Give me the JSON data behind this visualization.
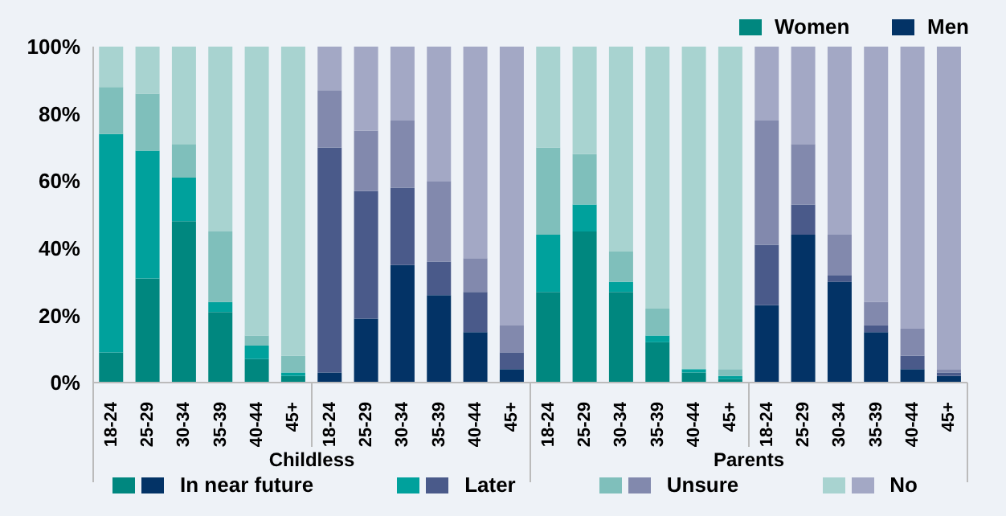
{
  "chart_data": {
    "type": "bar",
    "stacked": true,
    "categories": [
      "18-24",
      "25-29",
      "30-34",
      "35-39",
      "40-44",
      "45+",
      "18-24",
      "25-29",
      "30-34",
      "35-39",
      "40-44",
      "45+",
      "18-24",
      "25-29",
      "30-34",
      "35-39",
      "40-44",
      "45+",
      "18-24",
      "25-29",
      "30-34",
      "35-39",
      "40-44",
      "45+"
    ],
    "series": [
      {
        "name": "In near future",
        "colors": [
          "#00877f",
          "#00877f",
          "#00877f",
          "#00877f",
          "#00877f",
          "#00877f",
          "#033366",
          "#033366",
          "#033366",
          "#033366",
          "#033366",
          "#033366",
          "#00877f",
          "#00877f",
          "#00877f",
          "#00877f",
          "#00877f",
          "#00877f",
          "#033366",
          "#033366",
          "#033366",
          "#033366",
          "#033366",
          "#033366"
        ],
        "values": [
          9,
          31,
          48,
          21,
          7,
          2,
          3,
          19,
          35,
          26,
          15,
          4,
          27,
          45,
          27,
          12,
          3,
          1,
          23,
          44,
          30,
          15,
          4,
          2
        ]
      },
      {
        "name": "Later",
        "colors": [
          "#00a19c",
          "#00a19c",
          "#00a19c",
          "#00a19c",
          "#00a19c",
          "#00a19c",
          "#4a5a8a",
          "#4a5a8a",
          "#4a5a8a",
          "#4a5a8a",
          "#4a5a8a",
          "#4a5a8a",
          "#00a19c",
          "#00a19c",
          "#00a19c",
          "#00a19c",
          "#00a19c",
          "#00a19c",
          "#4a5a8a",
          "#4a5a8a",
          "#4a5a8a",
          "#4a5a8a",
          "#4a5a8a",
          "#4a5a8a"
        ],
        "values": [
          65,
          38,
          13,
          3,
          4,
          1,
          67,
          38,
          23,
          10,
          12,
          5,
          17,
          8,
          3,
          2,
          1,
          1,
          18,
          9,
          2,
          2,
          4,
          1
        ]
      },
      {
        "name": "Unsure",
        "colors": [
          "#7fbfbb",
          "#7fbfbb",
          "#7fbfbb",
          "#7fbfbb",
          "#7fbfbb",
          "#7fbfbb",
          "#8289ad",
          "#8289ad",
          "#8289ad",
          "#8289ad",
          "#8289ad",
          "#8289ad",
          "#7fbfbb",
          "#7fbfbb",
          "#7fbfbb",
          "#7fbfbb",
          "#7fbfbb",
          "#7fbfbb",
          "#8289ad",
          "#8289ad",
          "#8289ad",
          "#8289ad",
          "#8289ad",
          "#8289ad"
        ],
        "values": [
          14,
          17,
          10,
          21,
          3,
          5,
          17,
          18,
          20,
          24,
          10,
          8,
          26,
          15,
          9,
          8,
          0,
          2,
          37,
          18,
          12,
          7,
          8,
          1
        ]
      },
      {
        "name": "No",
        "colors": [
          "#a8d3d0",
          "#a8d3d0",
          "#a8d3d0",
          "#a8d3d0",
          "#a8d3d0",
          "#a8d3d0",
          "#a3a8c5",
          "#a3a8c5",
          "#a3a8c5",
          "#a3a8c5",
          "#a3a8c5",
          "#a3a8c5",
          "#a8d3d0",
          "#a8d3d0",
          "#a8d3d0",
          "#a8d3d0",
          "#a8d3d0",
          "#a8d3d0",
          "#a3a8c5",
          "#a3a8c5",
          "#a3a8c5",
          "#a3a8c5",
          "#a3a8c5",
          "#a3a8c5"
        ],
        "values": [
          12,
          14,
          29,
          55,
          86,
          92,
          13,
          25,
          22,
          40,
          63,
          83,
          30,
          32,
          61,
          78,
          96,
          96,
          22,
          29,
          56,
          76,
          84,
          96
        ]
      }
    ],
    "ylim": [
      0,
      100
    ],
    "yticks": [
      {
        "value": 0,
        "label": "0%"
      },
      {
        "value": 20,
        "label": "20%"
      },
      {
        "value": 40,
        "label": "40%"
      },
      {
        "value": 60,
        "label": "60%"
      },
      {
        "value": 80,
        "label": "80%"
      },
      {
        "value": 100,
        "label": "100%"
      }
    ],
    "legend": "bottom",
    "annotations": [
      "Women",
      "Men",
      "Childless",
      "Parents"
    ]
  }
}
